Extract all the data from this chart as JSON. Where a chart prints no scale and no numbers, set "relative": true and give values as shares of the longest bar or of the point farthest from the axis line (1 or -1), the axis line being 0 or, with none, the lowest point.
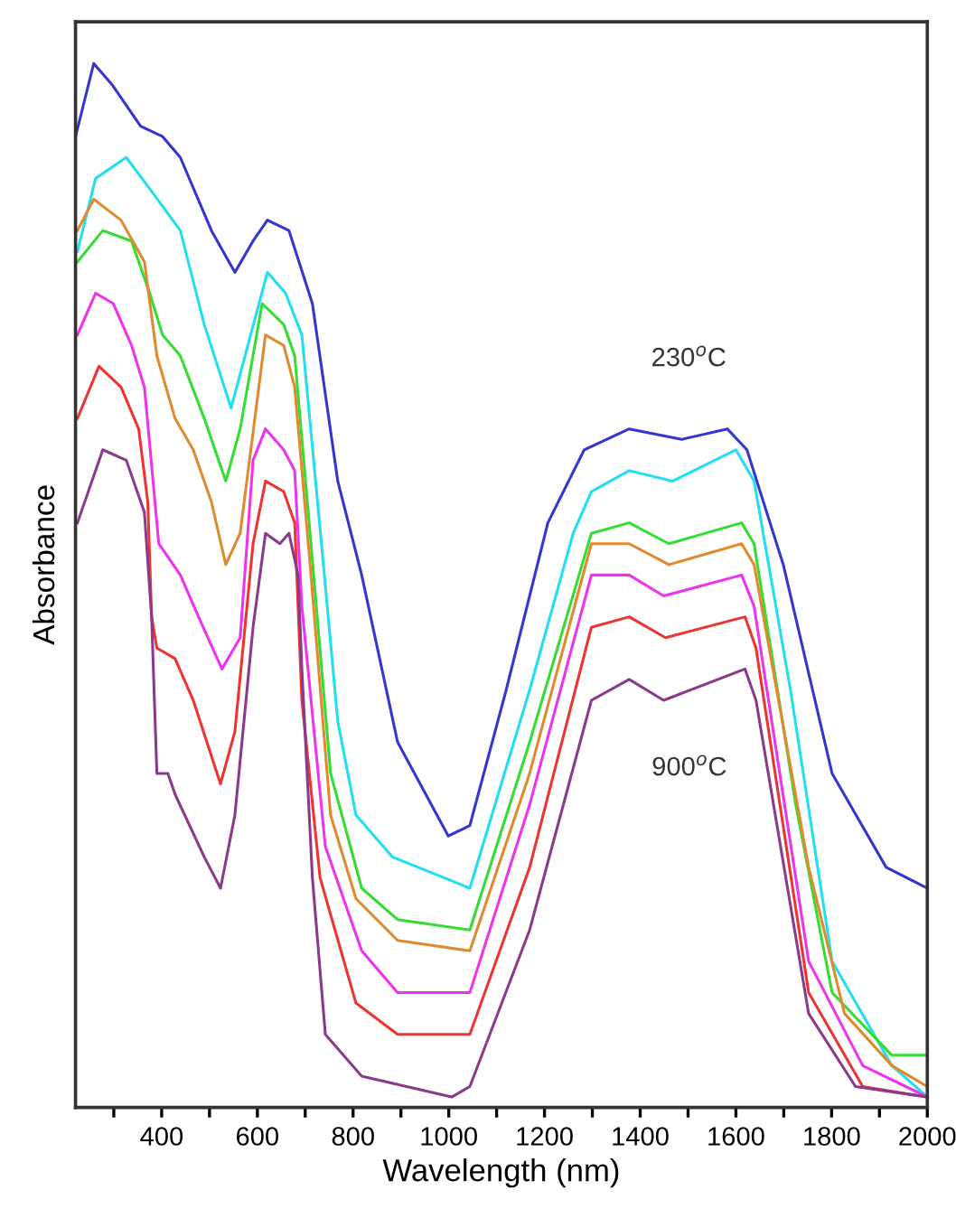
{
  "chart_data": {
    "type": "line",
    "relative": true,
    "xlabel": "Wavelength (nm)",
    "ylabel": "Absorbance",
    "xlim": [
      220,
      2000
    ],
    "xticks": [
      {
        "value": 300,
        "label": null
      },
      400,
      {
        "value": 500,
        "label": null
      },
      600,
      {
        "value": 700,
        "label": null
      },
      800,
      {
        "value": 900,
        "label": null
      },
      1000,
      {
        "value": 1100,
        "label": null
      },
      1200,
      {
        "value": 1300,
        "label": null
      },
      1400,
      {
        "value": 1500,
        "label": null
      },
      1600,
      {
        "value": 1700,
        "label": null
      },
      1800,
      {
        "value": 1900,
        "label": null
      },
      2000
    ],
    "tick_labels": "x",
    "grid": false,
    "legend": false,
    "marker": "none",
    "line_style": "solid",
    "series": [
      {
        "name": "230$^{o}$C",
        "color": "#3535d0",
        "x": [
          220,
          258,
          296,
          356,
          402,
          439,
          504,
          553,
          591,
          621,
          666,
          715,
          768,
          818,
          893,
          999,
          1044,
          1120,
          1207,
          1283,
          1377,
          1487,
          1582,
          1623,
          1699,
          1801,
          1914,
          2000
        ],
        "values": [
          0.93,
          1.0,
          0.98,
          0.94,
          0.93,
          0.91,
          0.84,
          0.8,
          0.83,
          0.85,
          0.84,
          0.77,
          0.6,
          0.51,
          0.35,
          0.26,
          0.27,
          0.4,
          0.56,
          0.63,
          0.65,
          0.64,
          0.65,
          0.63,
          0.52,
          0.32,
          0.23,
          0.21
        ]
      },
      {
        "color": "#22dfef",
        "x": [
          224,
          262,
          326,
          375,
          439,
          489,
          545,
          621,
          659,
          693,
          734,
          768,
          806,
          882,
          1044,
          1169,
          1260,
          1298,
          1377,
          1468,
          1600,
          1638,
          1714,
          1801,
          1926,
          2000
        ],
        "values": [
          0.82,
          0.89,
          0.91,
          0.88,
          0.84,
          0.75,
          0.67,
          0.8,
          0.78,
          0.74,
          0.54,
          0.37,
          0.28,
          0.24,
          0.21,
          0.4,
          0.55,
          0.59,
          0.61,
          0.6,
          0.63,
          0.6,
          0.4,
          0.14,
          0.04,
          0.01
        ]
      },
      {
        "color": "#33dd33",
        "x": [
          224,
          277,
          337,
          375,
          402,
          439,
          489,
          534,
          564,
          610,
          655,
          678,
          712,
          753,
          818,
          893,
          1044,
          1169,
          1298,
          1377,
          1460,
          1612,
          1638,
          1725,
          1801,
          1926,
          2000
        ],
        "values": [
          0.81,
          0.84,
          0.83,
          0.78,
          0.74,
          0.72,
          0.66,
          0.6,
          0.65,
          0.77,
          0.75,
          0.72,
          0.54,
          0.32,
          0.21,
          0.18,
          0.17,
          0.35,
          0.55,
          0.56,
          0.54,
          0.56,
          0.54,
          0.29,
          0.11,
          0.05,
          0.05
        ]
      },
      {
        "color": "#e08a30",
        "x": [
          224,
          258,
          315,
          364,
          390,
          428,
          466,
          504,
          534,
          564,
          617,
          655,
          678,
          712,
          753,
          806,
          893,
          1044,
          1169,
          1298,
          1377,
          1460,
          1612,
          1638,
          1752,
          1827,
          1926,
          2000
        ],
        "values": [
          0.84,
          0.87,
          0.85,
          0.81,
          0.72,
          0.66,
          0.63,
          0.58,
          0.52,
          0.55,
          0.74,
          0.73,
          0.69,
          0.51,
          0.28,
          0.2,
          0.16,
          0.15,
          0.32,
          0.54,
          0.54,
          0.52,
          0.54,
          0.52,
          0.23,
          0.09,
          0.04,
          0.02
        ]
      },
      {
        "color": "#ee33ee",
        "x": [
          224,
          262,
          299,
          337,
          364,
          394,
          439,
          477,
          526,
          564,
          591,
          617,
          655,
          678,
          693,
          742,
          818,
          893,
          1044,
          1169,
          1298,
          1377,
          1449,
          1612,
          1638,
          1752,
          1865,
          2000
        ],
        "values": [
          0.74,
          0.78,
          0.77,
          0.73,
          0.69,
          0.54,
          0.51,
          0.47,
          0.42,
          0.45,
          0.62,
          0.65,
          0.63,
          0.61,
          0.48,
          0.25,
          0.15,
          0.11,
          0.11,
          0.29,
          0.51,
          0.51,
          0.49,
          0.51,
          0.48,
          0.14,
          0.04,
          0.01
        ]
      },
      {
        "color": "#ee3333",
        "x": [
          224,
          269,
          315,
          352,
          371,
          379,
          390,
          428,
          466,
          523,
          553,
          591,
          617,
          655,
          678,
          693,
          731,
          806,
          893,
          1044,
          1169,
          1298,
          1377,
          1453,
          1619,
          1642,
          1752,
          1865,
          2000
        ],
        "values": [
          0.66,
          0.71,
          0.69,
          0.65,
          0.58,
          0.47,
          0.44,
          0.43,
          0.39,
          0.31,
          0.36,
          0.54,
          0.6,
          0.59,
          0.56,
          0.39,
          0.22,
          0.1,
          0.07,
          0.07,
          0.23,
          0.46,
          0.47,
          0.45,
          0.47,
          0.44,
          0.11,
          0.02,
          0.01
        ]
      },
      {
        "name": "900$^{o}$C",
        "color": "#8a3a8a",
        "x": [
          224,
          277,
          326,
          364,
          379,
          390,
          413,
          428,
          489,
          523,
          553,
          591,
          617,
          647,
          666,
          685,
          693,
          715,
          742,
          818,
          1006,
          1044,
          1169,
          1298,
          1377,
          1449,
          1619,
          1642,
          1752,
          1850,
          2000
        ],
        "values": [
          0.56,
          0.63,
          0.62,
          0.57,
          0.47,
          0.32,
          0.32,
          0.3,
          0.24,
          0.21,
          0.28,
          0.46,
          0.55,
          0.54,
          0.55,
          0.51,
          0.42,
          0.22,
          0.07,
          0.03,
          0.01,
          0.02,
          0.17,
          0.39,
          0.41,
          0.39,
          0.42,
          0.39,
          0.09,
          0.02,
          0.01
        ]
      }
    ]
  }
}
